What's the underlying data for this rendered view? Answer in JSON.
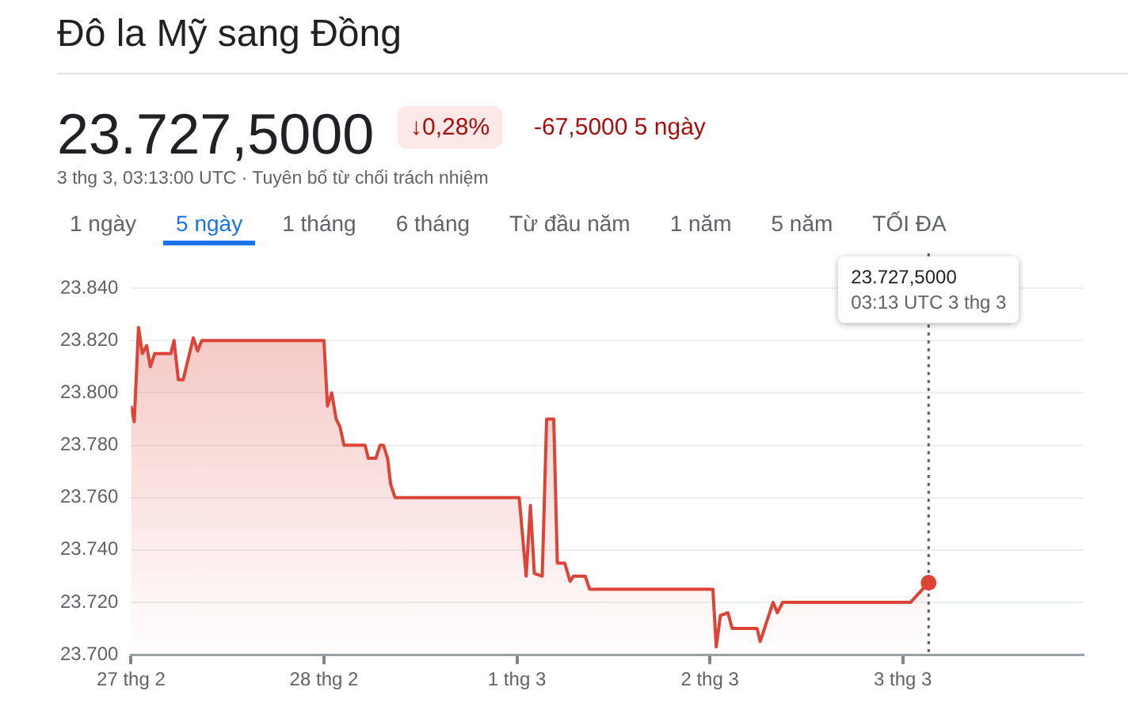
{
  "chart_data": {
    "type": "area",
    "title": "Đô la Mỹ sang Đồng",
    "annotations": [
      "23.727,5000",
      "↓0,28%",
      "-67,5000 5 ngày",
      "3 thg 3, 03:13:00 UTC · Tuyên bố từ chối trách nhiệm",
      "1 ngày",
      "5 ngày",
      "1 tháng",
      "6 tháng",
      "Từ đầu năm",
      "1 năm",
      "5 năm",
      "TỐI ĐA",
      "23.727,5000\n03:13 UTC 3 thg 3"
    ],
    "x": [
      "--02-27T00:00",
      "--02-27T00:24",
      "--02-27T00:56",
      "--02-27T01:24",
      "--02-27T01:57",
      "--02-27T02:24",
      "--02-27T02:57",
      "--02-27T04:57",
      "--02-27T05:21",
      "--02-27T05:53",
      "--02-27T06:29",
      "--02-27T07:45",
      "--02-27T08:17",
      "--02-27T08:48",
      "--02-28T00:00",
      "--02-28T00:26",
      "--02-28T00:58",
      "--02-28T01:31",
      "--02-28T02:00",
      "--02-28T02:30",
      "--02-28T05:07",
      "--02-28T05:31",
      "--02-28T06:27",
      "--02-28T06:59",
      "--02-28T07:24",
      "--02-28T07:55",
      "--02-28T08:18",
      "--02-28T08:51",
      "--03-01T00:17",
      "--03-01T01:09",
      "--03-01T01:41",
      "--03-01T02:10",
      "--03-01T03:09",
      "--03-01T03:42",
      "--03-01T04:35",
      "--03-01T05:02",
      "--03-01T05:57",
      "--03-01T06:37",
      "--03-01T07:02",
      "--03-01T08:30",
      "--03-01T09:03",
      "--03-02T00:23",
      "--03-02T00:48",
      "--03-02T01:19",
      "--03-02T02:15",
      "--03-02T02:47",
      "--03-02T05:53",
      "--03-02T06:16",
      "--03-02T07:52",
      "--03-02T08:24",
      "--03-02T09:04",
      "--03-03T00:58",
      "--03-03T03:13"
    ],
    "series": [
      {
        "color": "#db4437",
        "values": [
          23795,
          23789,
          23825,
          23815,
          23818,
          23810,
          23815,
          23815,
          23820,
          23805,
          23805,
          23821,
          23816,
          23820,
          23820,
          23795,
          23800,
          23790,
          23787,
          23780,
          23780,
          23775,
          23775,
          23780,
          23780,
          23775,
          23765,
          23760,
          23760,
          23730,
          23757,
          23731,
          23730,
          23790,
          23790,
          23735,
          23735,
          23728,
          23730,
          23730,
          23725,
          23725,
          23703,
          23715,
          23716,
          23710,
          23710,
          23705,
          23720,
          23716,
          23720,
          23720,
          23727.5
        ]
      }
    ],
    "xlim": [
      "--02-27T00:00",
      "--03-03T22:30"
    ],
    "xticks": [
      {
        "value": "--02-27",
        "label": "27 thg 2"
      },
      {
        "value": "--02-28",
        "label": "28 thg 2"
      },
      {
        "value": "--03-01",
        "label": "1 thg 3"
      },
      {
        "value": "--03-02",
        "label": "2 thg 3"
      },
      {
        "value": "--03-03",
        "label": "3 thg 3"
      }
    ],
    "ylim": [
      23700,
      23840
    ],
    "yticks": [
      {
        "value": 23700,
        "label": "23.700"
      },
      {
        "value": 23720,
        "label": "23.720"
      },
      {
        "value": 23740,
        "label": "23.740"
      },
      {
        "value": 23760,
        "label": "23.760"
      },
      {
        "value": 23780,
        "label": "23.780"
      },
      {
        "value": 23800,
        "label": "23.800"
      },
      {
        "value": 23820,
        "label": "23.820"
      },
      {
        "value": 23840,
        "label": "23.840"
      }
    ],
    "ref_lines": [
      {
        "axis": "x",
        "value": "--03-03T03:13",
        "color": "#5f6368",
        "line_style": "dotted"
      }
    ],
    "grid": "y",
    "legend": false
  }
}
